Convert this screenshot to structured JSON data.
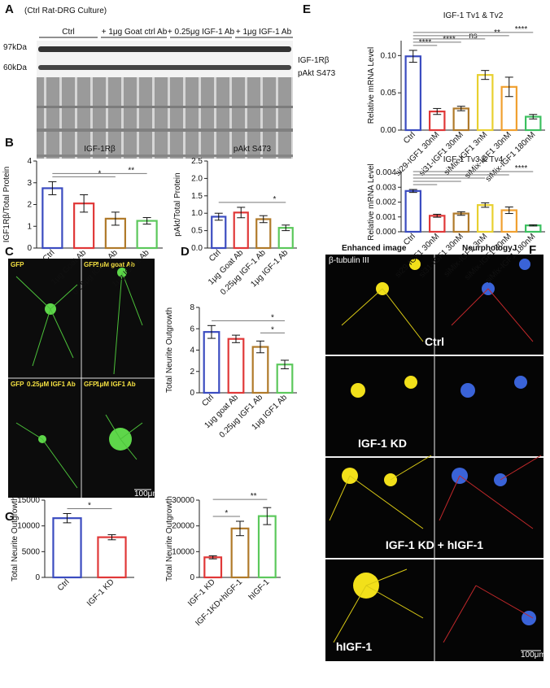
{
  "panel_letters": [
    "A",
    "B",
    "C",
    "D",
    "E",
    "F",
    "G"
  ],
  "blot": {
    "condition": "(Ctrl Rat-DRG Culture)",
    "groups": [
      "Ctrl",
      "+ 1μg Goat ctrl Ab",
      "+ 0.25μg IGF-1 Ab",
      "+ 1μg IGF-1 Ab"
    ],
    "markers": [
      "97kDa",
      "60kDa"
    ],
    "bands": [
      "IGF-1Rβ",
      "pAkt S473"
    ]
  },
  "micrographs": {
    "images": [
      {
        "stain": "GFP"
      },
      {
        "stain": "GFP",
        "treatment": "1μM goat Ab"
      },
      {
        "stain": "GFP",
        "treatment": "0.25μM IGF1 Ab"
      },
      {
        "stain": "GFP",
        "treatment": "1μM IGF1 Ab"
      }
    ],
    "scale_bar": "100μm"
  },
  "knockdown_images": {
    "columns": [
      "Enhanced image",
      "NeurphologyJ"
    ],
    "stain": "β-tubulin III",
    "rows": [
      "Ctrl",
      "IGF-1 KD",
      "IGF-1 KD + hIGF-1",
      "hIGF-1"
    ],
    "scale_bar": "100μm"
  },
  "chart_data": [
    {
      "type": "bar",
      "title": "IGF-1Rβ",
      "y_label": "IGF1Rβ/Total Protein",
      "categories": [
        "Ctrl",
        "1μg Goat Ab",
        "0.25μg IGF-1 Ab",
        "1μg IGF-1 Ab"
      ],
      "values": [
        2.75,
        2.05,
        1.35,
        1.25
      ],
      "errors": [
        0.3,
        0.4,
        0.3,
        0.15
      ],
      "colors": [
        "#3b4cc0",
        "#e03838",
        "#b07a2a",
        "#5cc85c"
      ],
      "ylim": [
        0,
        4
      ],
      "yticks": [
        0,
        1,
        2,
        3,
        4
      ],
      "comparisons": [
        {
          "from": 0,
          "to": 2,
          "label": "*"
        },
        {
          "from": 0,
          "to": 3,
          "label": "**"
        }
      ]
    },
    {
      "type": "bar",
      "title": "pAkt S473",
      "y_label": "pAkt/Total Protein",
      "categories": [
        "Ctrl",
        "1μg Goat Ab",
        "0.25μg IGF-1 Ab",
        "1μg IGF-1 Ab"
      ],
      "values": [
        0.9,
        1.02,
        0.83,
        0.58
      ],
      "errors": [
        0.1,
        0.15,
        0.1,
        0.08
      ],
      "colors": [
        "#3b4cc0",
        "#e03838",
        "#b07a2a",
        "#5cc85c"
      ],
      "ylim": [
        0,
        2.5
      ],
      "yticks": [
        {
          "value": 0,
          "label": "0.0"
        },
        0.5,
        {
          "value": 1,
          "label": "1.0"
        },
        1.5,
        {
          "value": 2,
          "label": "2.0"
        },
        2.5
      ],
      "comparisons": [
        {
          "from": 0,
          "to": 3,
          "label": "*"
        }
      ]
    },
    {
      "type": "bar",
      "y_label": "Total Neurite Outgrowth",
      "categories": [
        "Ctrl",
        "1μg goat Ab",
        "0.25μg IGF1 Ab",
        "1μg IGF1 Ab"
      ],
      "values": [
        5.7,
        5.05,
        4.3,
        2.65
      ],
      "errors": [
        0.6,
        0.35,
        0.55,
        0.4
      ],
      "colors": [
        "#3b4cc0",
        "#e03838",
        "#b07a2a",
        "#5cc85c"
      ],
      "ylim": [
        0,
        8
      ],
      "yticks": [
        0,
        2,
        4,
        6,
        8
      ],
      "comparisons": [
        {
          "from": 0,
          "to": 3,
          "label": "*"
        },
        {
          "from": 2,
          "to": 3,
          "label": "*"
        }
      ]
    },
    {
      "type": "bar",
      "title": "IGF-1 Tv1 & Tv2",
      "y_label": "Relative mRNA Level",
      "categories": [
        "Ctrl",
        "si29-IGF1 30nM",
        "si31-IGF1 30nM",
        "siMix-IGF1 3nM",
        "siMix-IGF1 30nM",
        "siMix-IGF1 180nM"
      ],
      "values": [
        0.099,
        0.025,
        0.029,
        0.074,
        0.058,
        0.018
      ],
      "errors": [
        0.008,
        0.004,
        0.003,
        0.006,
        0.013,
        0.003
      ],
      "colors": [
        "#3b4cc0",
        "#e03838",
        "#b07a2a",
        "#e8d030",
        "#f0a030",
        "#3cc060"
      ],
      "ylim": [
        0,
        0.12
      ],
      "yticks": [
        {
          "value": 0,
          "label": "0.00"
        },
        {
          "value": 0.05,
          "label": "0.05"
        },
        {
          "value": 0.1,
          "label": "0.10"
        }
      ],
      "comparisons": [
        {
          "from": 0,
          "to": 1,
          "label": "****"
        },
        {
          "from": 0,
          "to": 2,
          "label": "****"
        },
        {
          "from": 0,
          "to": 3,
          "label": "ns"
        },
        {
          "from": 0,
          "to": 4,
          "label": "**"
        },
        {
          "from": 0,
          "to": 5,
          "label": "****"
        }
      ]
    },
    {
      "type": "bar",
      "title": "IGF-1 Tv3 & Tv4",
      "y_label": "Relative mRNA Level",
      "categories": [
        "Ctrl",
        "si29-IGF1 30nM",
        "si31-IGF1 30nM",
        "siMix-IGF1 3nM",
        "siMix-IGF1 30nM",
        "siMix-IGF1 180nM"
      ],
      "values": [
        0.00275,
        0.00108,
        0.00123,
        0.0018,
        0.00145,
        0.00043
      ],
      "errors": [
        0.0001,
        0.0001,
        0.00012,
        0.00015,
        0.00022,
        4e-05
      ],
      "colors": [
        "#3b4cc0",
        "#e03838",
        "#b07a2a",
        "#e8d030",
        "#f0a030",
        "#3cc060"
      ],
      "ylim": [
        0,
        0.004
      ],
      "yticks": [
        {
          "value": 0,
          "label": "0.000"
        },
        {
          "value": 0.001,
          "label": "0.001"
        },
        {
          "value": 0.002,
          "label": "0.002"
        },
        {
          "value": 0.003,
          "label": "0.003"
        },
        {
          "value": 0.004,
          "label": "0.004"
        }
      ],
      "comparisons": [
        {
          "from": 0,
          "to": 1
        },
        {
          "from": 0,
          "to": 2
        },
        {
          "from": 0,
          "to": 3
        },
        {
          "from": 0,
          "to": 4
        },
        {
          "from": 0,
          "to": 5,
          "label": "****"
        }
      ]
    },
    {
      "type": "bar",
      "y_label": "Total Neurite Outgrowth",
      "categories": [
        "Ctrl",
        "IGF-1 KD"
      ],
      "values": [
        11500,
        7800
      ],
      "errors": [
        900,
        500
      ],
      "colors": [
        "#3b4cc0",
        "#e03838"
      ],
      "ylim": [
        0,
        15000
      ],
      "yticks": [
        0,
        5000,
        10000,
        15000
      ],
      "comparisons": [
        {
          "from": 0,
          "to": 1,
          "label": "*"
        }
      ]
    },
    {
      "type": "bar",
      "y_label": "Total Neurite Outgrowth",
      "categories": [
        "IGF-1 KD",
        "IGF-1KD+hIGF-1",
        "hIGF-1"
      ],
      "values": [
        7800,
        19000,
        23800
      ],
      "errors": [
        600,
        2800,
        3300
      ],
      "colors": [
        "#e03838",
        "#b07a2a",
        "#5cc85c"
      ],
      "ylim": [
        0,
        30000
      ],
      "yticks": [
        0,
        10000,
        20000,
        30000
      ],
      "comparisons": [
        {
          "from": 0,
          "to": 1,
          "label": "*"
        },
        {
          "from": 0,
          "to": 2,
          "label": "**"
        }
      ]
    }
  ]
}
